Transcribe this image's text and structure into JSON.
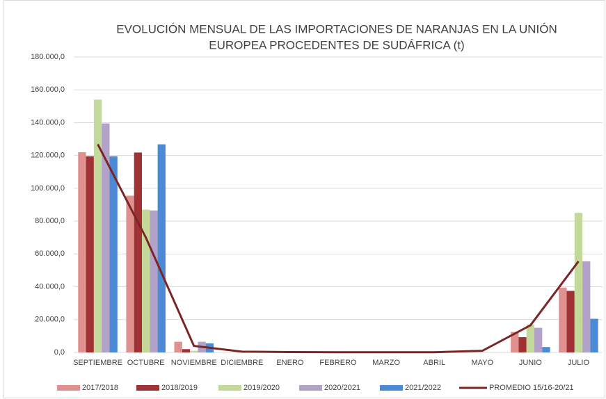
{
  "chart_data": {
    "type": "bar",
    "title": [
      "EVOLUCIÓN MENSUAL DE LAS IMPORTACIONES DE NARANJAS EN LA UNIÓN",
      "EUROPEA PROCEDENTES DE SUDÁFRICA (t)"
    ],
    "categories": [
      "SEPTIEMBRE",
      "OCTUBRE",
      "NOVIEMBRE",
      "DICIEMBRE",
      "ENERO",
      "FEBRERO",
      "MARZO",
      "ABRIL",
      "MAYO",
      "JUNIO",
      "JULIO"
    ],
    "series": [
      {
        "name": "2017/2018",
        "color": "#e0908e",
        "values": [
          122000,
          95500,
          6500,
          0,
          0,
          0,
          0,
          0,
          0,
          12500,
          39500
        ]
      },
      {
        "name": "2018/2019",
        "color": "#a03236",
        "values": [
          119500,
          121800,
          2000,
          0,
          0,
          0,
          0,
          0,
          0,
          9300,
          37500
        ]
      },
      {
        "name": "2019/2020",
        "color": "#c3d99b",
        "values": [
          154000,
          87000,
          1000,
          0,
          0,
          0,
          0,
          0,
          0,
          17000,
          85000
        ]
      },
      {
        "name": "2020/2021",
        "color": "#b3a2c8",
        "values": [
          139500,
          86500,
          6500,
          0,
          0,
          0,
          0,
          0,
          0,
          15000,
          55500
        ]
      },
      {
        "name": "2021/2022",
        "color": "#4d8ad6",
        "values": [
          119500,
          126800,
          5500,
          0,
          0,
          0,
          0,
          0,
          0,
          3300,
          20500
        ]
      },
      {
        "name": "PROMEDIO 15/16-20/21",
        "type": "line",
        "color": "#7b2626",
        "values": [
          126800,
          70000,
          4000,
          500,
          200,
          100,
          100,
          100,
          1000,
          16500,
          55500
        ]
      }
    ],
    "ylim": [
      0,
      180000
    ],
    "yticks": [
      {
        "value": 0,
        "label": "0,0"
      },
      {
        "value": 20000,
        "label": "20.000,0"
      },
      {
        "value": 40000,
        "label": "40.000,0"
      },
      {
        "value": 60000,
        "label": "60.000,0"
      },
      {
        "value": 80000,
        "label": "80.000,0"
      },
      {
        "value": 100000,
        "label": "100.000,0"
      },
      {
        "value": 120000,
        "label": "120.000,0"
      },
      {
        "value": 140000,
        "label": "140.000,0"
      },
      {
        "value": 160000,
        "label": "160.000,0"
      },
      {
        "value": 180000,
        "label": "180.000,0"
      }
    ],
    "grid": true
  }
}
